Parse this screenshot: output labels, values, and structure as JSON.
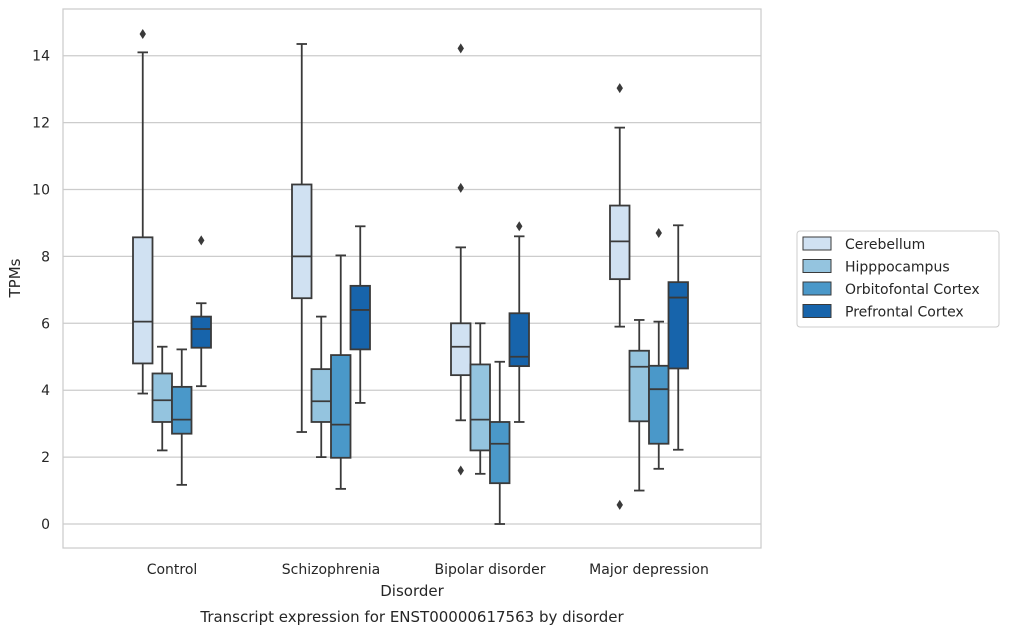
{
  "chart_data": {
    "type": "boxplot",
    "caption": "Transcript expression for ENST00000617563 by disorder",
    "xlabel": "Disorder",
    "ylabel": "TPMs",
    "ylim": [
      -0.7,
      15.4
    ],
    "yticks": [
      0,
      2,
      4,
      6,
      8,
      10,
      12,
      14
    ],
    "grid": "horizontal",
    "legend_position": "right",
    "categories": [
      "Control",
      "Schizophrenia",
      "Bipolar disorder",
      "Major depression"
    ],
    "series": [
      {
        "name": "Cerebellum",
        "color": "#d0e1f2",
        "boxes": [
          {
            "whisker_low": 3.9,
            "q1": 4.8,
            "median": 6.05,
            "q3": 8.57,
            "whisker_high": 14.1,
            "outliers": [
              14.65
            ]
          },
          {
            "whisker_low": 2.75,
            "q1": 6.75,
            "median": 8.0,
            "q3": 10.15,
            "whisker_high": 14.35,
            "outliers": []
          },
          {
            "whisker_low": 3.1,
            "q1": 4.45,
            "median": 5.3,
            "q3": 6.0,
            "whisker_high": 8.27,
            "outliers": [
              14.22,
              10.05,
              1.6
            ]
          },
          {
            "whisker_low": 5.9,
            "q1": 7.32,
            "median": 8.45,
            "q3": 9.52,
            "whisker_high": 11.85,
            "outliers": [
              13.03,
              0.57
            ]
          }
        ]
      },
      {
        "name": "Hipppocampus",
        "color": "#94c4df",
        "boxes": [
          {
            "whisker_low": 2.2,
            "q1": 3.05,
            "median": 3.7,
            "q3": 4.5,
            "whisker_high": 5.3,
            "outliers": []
          },
          {
            "whisker_low": 2.0,
            "q1": 3.05,
            "median": 3.67,
            "q3": 4.63,
            "whisker_high": 6.2,
            "outliers": []
          },
          {
            "whisker_low": 1.5,
            "q1": 2.2,
            "median": 3.12,
            "q3": 4.77,
            "whisker_high": 6.0,
            "outliers": []
          },
          {
            "whisker_low": 1.0,
            "q1": 3.07,
            "median": 4.7,
            "q3": 5.18,
            "whisker_high": 6.1,
            "outliers": []
          }
        ]
      },
      {
        "name": "Orbitofontal Cortex",
        "color": "#4a98c9",
        "boxes": [
          {
            "whisker_low": 1.17,
            "q1": 2.7,
            "median": 3.12,
            "q3": 4.1,
            "whisker_high": 5.22,
            "outliers": []
          },
          {
            "whisker_low": 1.05,
            "q1": 1.98,
            "median": 2.97,
            "q3": 5.05,
            "whisker_high": 8.03,
            "outliers": []
          },
          {
            "whisker_low": 0.0,
            "q1": 1.22,
            "median": 2.4,
            "q3": 3.05,
            "whisker_high": 4.85,
            "outliers": []
          },
          {
            "whisker_low": 1.65,
            "q1": 2.4,
            "median": 4.03,
            "q3": 4.73,
            "whisker_high": 6.05,
            "outliers": [
              8.7
            ]
          }
        ]
      },
      {
        "name": "Prefrontal Cortex",
        "color": "#1764ab",
        "boxes": [
          {
            "whisker_low": 4.12,
            "q1": 5.27,
            "median": 5.83,
            "q3": 6.2,
            "whisker_high": 6.6,
            "outliers": [
              8.48
            ]
          },
          {
            "whisker_low": 3.62,
            "q1": 5.22,
            "median": 6.4,
            "q3": 7.12,
            "whisker_high": 8.9,
            "outliers": []
          },
          {
            "whisker_low": 3.05,
            "q1": 4.72,
            "median": 5.0,
            "q3": 6.3,
            "whisker_high": 8.6,
            "outliers": [
              8.9
            ]
          },
          {
            "whisker_low": 2.22,
            "q1": 4.65,
            "median": 6.77,
            "q3": 7.23,
            "whisker_high": 8.93,
            "outliers": []
          }
        ]
      }
    ]
  }
}
